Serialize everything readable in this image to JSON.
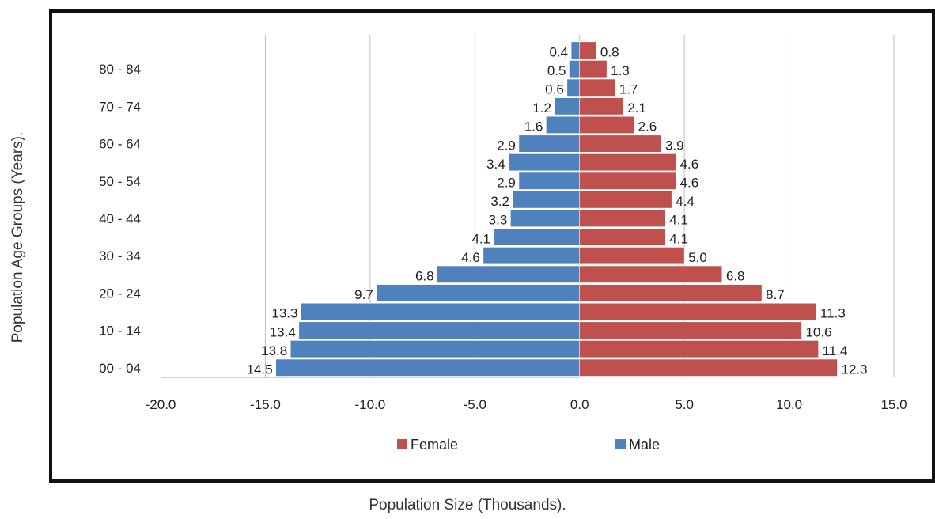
{
  "chart_data": {
    "type": "bar",
    "orientation": "horizontal",
    "subtype": "population-pyramid",
    "xlabel": "Population Size (Thousands).",
    "ylabel": "Population Age Groups (Years).",
    "xlim": [
      -20,
      15
    ],
    "x_ticks": [
      "-20.0",
      "-15.0",
      "-10.0",
      "-5.0",
      "0.0",
      "5.0",
      "10.0",
      "15.0"
    ],
    "y_tick_labels": [
      "00 - 04",
      "10 - 14",
      "20 - 24",
      "30 - 34",
      "40 - 44",
      "50 - 54",
      "60 - 64",
      "70 - 74",
      "80 - 84"
    ],
    "grid": "vertical",
    "legend_position": "bottom",
    "series": [
      {
        "name": "Female",
        "color": "#c0504d",
        "values": [
          12.3,
          11.4,
          10.6,
          11.3,
          8.7,
          6.8,
          5.0,
          4.1,
          4.1,
          4.4,
          4.6,
          4.6,
          3.9,
          2.6,
          2.1,
          1.7,
          1.3,
          0.8
        ],
        "labels": [
          "12.3",
          "11.4",
          "10.6",
          "11.3",
          "8.7",
          "6.8",
          "5.0",
          "4.1",
          "4.1",
          "4.4",
          "4.6",
          "4.6",
          "3.9",
          "2.6",
          "2.1",
          "1.7",
          "1.3",
          "0.8"
        ]
      },
      {
        "name": "Male",
        "color": "#4f81bd",
        "values": [
          -14.5,
          -13.8,
          -13.4,
          -13.3,
          -9.7,
          -6.8,
          -4.6,
          -4.1,
          -3.3,
          -3.2,
          -2.9,
          -3.4,
          -2.9,
          -1.6,
          -1.2,
          -0.6,
          -0.5,
          -0.4
        ],
        "labels": [
          "14.5",
          "13.8",
          "13.4",
          "13.3",
          "9.7",
          "6.8",
          "4.6",
          "4.1",
          "3.3",
          "3.2",
          "2.9",
          "3.4",
          "2.9",
          "1.6",
          "1.2",
          "0.6",
          "0.5",
          "0.4"
        ]
      }
    ]
  }
}
